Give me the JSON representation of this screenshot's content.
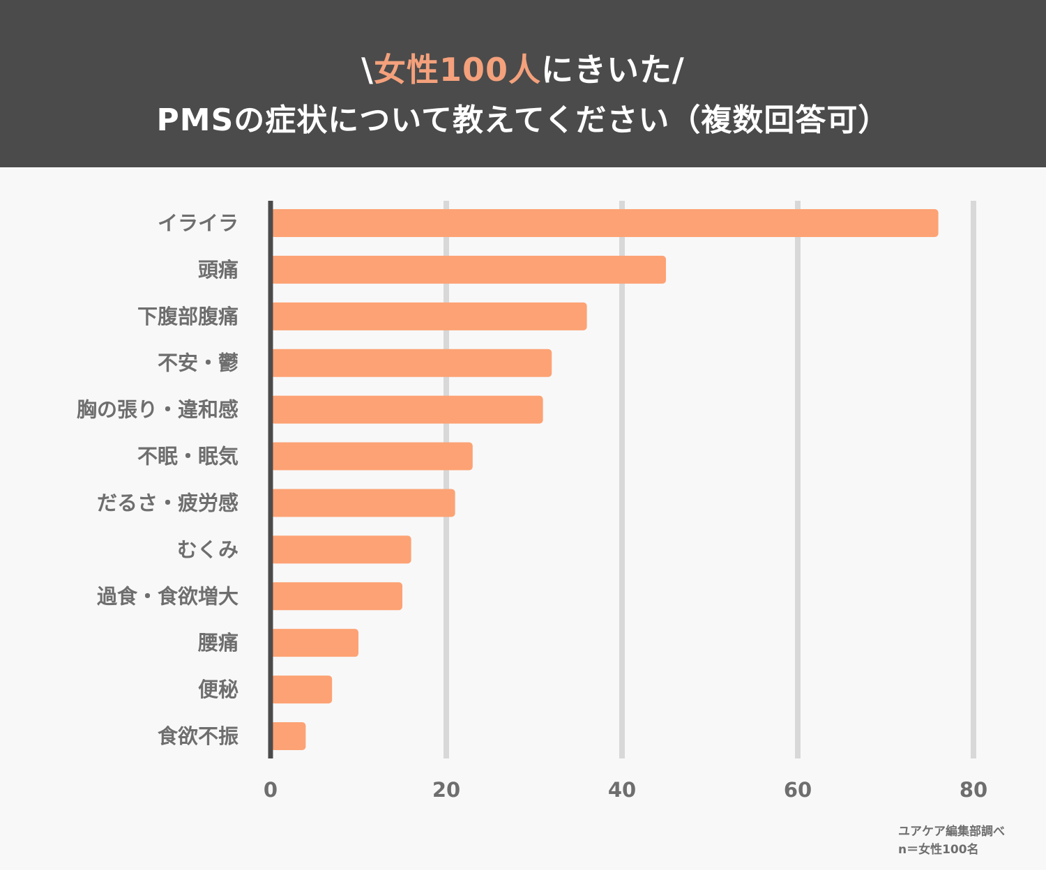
{
  "header": {
    "line1_prefix": "\\",
    "line1_accent": "女性100人",
    "line1_suffix": "にきいた/",
    "line2": "PMSの症状について教えてください（複数回答可）"
  },
  "colors": {
    "bar": "#fda274",
    "grid": "#d8d8d8",
    "axis": "#4b4b4b",
    "accent": "#f4a17c"
  },
  "chart_data": {
    "type": "bar",
    "orientation": "horizontal",
    "title": "PMSの症状について教えてください（複数回答可）",
    "categories": [
      "イライラ",
      "頭痛",
      "下腹部腹痛",
      "不安・鬱",
      "胸の張り・違和感",
      "不眠・眠気",
      "だるさ・疲労感",
      "むくみ",
      "過食・食欲増大",
      "腰痛",
      "便秘",
      "食欲不振"
    ],
    "values": [
      76,
      45,
      36,
      32,
      31,
      23,
      21,
      16,
      15,
      10,
      7,
      4
    ],
    "xlim": [
      0,
      80
    ],
    "xticks": [
      "0",
      "20",
      "40",
      "60",
      "80"
    ],
    "tick_values": [
      0,
      20,
      40,
      60,
      80
    ],
    "xlabel": "",
    "ylabel": "",
    "grid": true
  },
  "source": {
    "line1": "ユアケア編集部調べ",
    "line2": "n＝女性100名"
  }
}
